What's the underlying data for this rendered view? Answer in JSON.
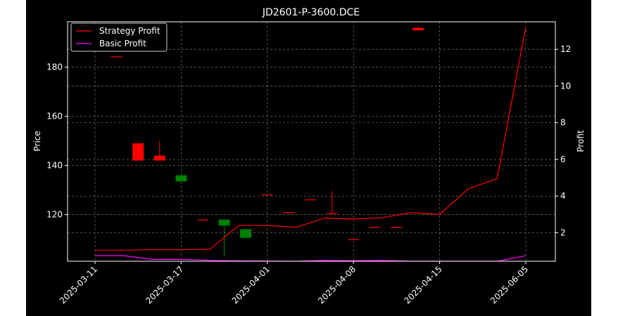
{
  "chart_data": {
    "type": "candlestick",
    "title": "JD2601-P-3600.DCE",
    "ylabel_left": "Price",
    "ylabel_right": "Profit",
    "x_tick_labels": [
      "2025-03-11",
      "2025-03-17",
      "2025-04-01",
      "2025-04-08",
      "2025-04-15",
      "2025-06-05"
    ],
    "y_left_ticks": [
      120,
      140,
      160,
      180
    ],
    "y_right_ticks": [
      2,
      4,
      6,
      8,
      10,
      12
    ],
    "y_left_range": [
      101,
      198.5
    ],
    "y_right_range": [
      0.45,
      13.5
    ],
    "grid": true,
    "legend_position": "top-left",
    "colors": {
      "up": "#008000",
      "down": "#ff0000",
      "strategy": "#ff0000",
      "basic": "#ff00ff",
      "background": "#000000",
      "foreground": "#ffffff"
    },
    "candles": [
      {
        "open": 184.2,
        "close": 184.2,
        "high": 184.2,
        "low": 184.2
      },
      {
        "open": 149.0,
        "close": 142.0,
        "high": 149.0,
        "low": 142.0
      },
      {
        "open": 144.0,
        "close": 142.0,
        "high": 150.0,
        "low": 142.0
      },
      {
        "open": 133.5,
        "close": 136.0,
        "high": 136.0,
        "low": 133.5
      },
      {
        "open": 117.8,
        "close": 117.8,
        "high": 117.8,
        "low": 117.8
      },
      {
        "open": 115.5,
        "close": 118.0,
        "high": 118.0,
        "low": 103.0
      },
      {
        "open": 110.5,
        "close": 114.0,
        "high": 114.0,
        "low": 110.5
      },
      {
        "open": 128.0,
        "close": 128.0,
        "high": 128.0,
        "low": 128.0
      },
      {
        "open": 120.8,
        "close": 120.8,
        "high": 120.8,
        "low": 120.8
      },
      {
        "open": 126.0,
        "close": 126.0,
        "high": 126.0,
        "low": 126.0
      },
      {
        "open": 120.5,
        "close": 120.5,
        "high": 129.5,
        "low": 120.0
      },
      {
        "open": 109.8,
        "close": 109.8,
        "high": 109.8,
        "low": 109.8
      },
      {
        "open": 114.8,
        "close": 114.8,
        "high": 114.8,
        "low": 114.8
      },
      {
        "open": 114.8,
        "close": 114.8,
        "high": 114.8,
        "low": 114.8
      },
      {
        "open": 196.0,
        "close": 195.0,
        "high": 196.8,
        "low": 195.0
      }
    ],
    "series": [
      {
        "name": "Strategy Profit",
        "values": [
          1.05,
          1.05,
          1.08,
          1.08,
          1.1,
          2.4,
          2.4,
          2.3,
          2.8,
          2.75,
          2.82,
          3.1,
          3.0,
          4.4,
          4.95,
          13.2
        ]
      },
      {
        "name": "Basic Profit",
        "values": [
          0.75,
          0.75,
          0.55,
          0.55,
          0.5,
          0.47,
          0.46,
          0.45,
          0.5,
          0.48,
          0.5,
          0.45,
          0.45,
          0.45,
          0.45,
          0.75
        ]
      }
    ]
  }
}
